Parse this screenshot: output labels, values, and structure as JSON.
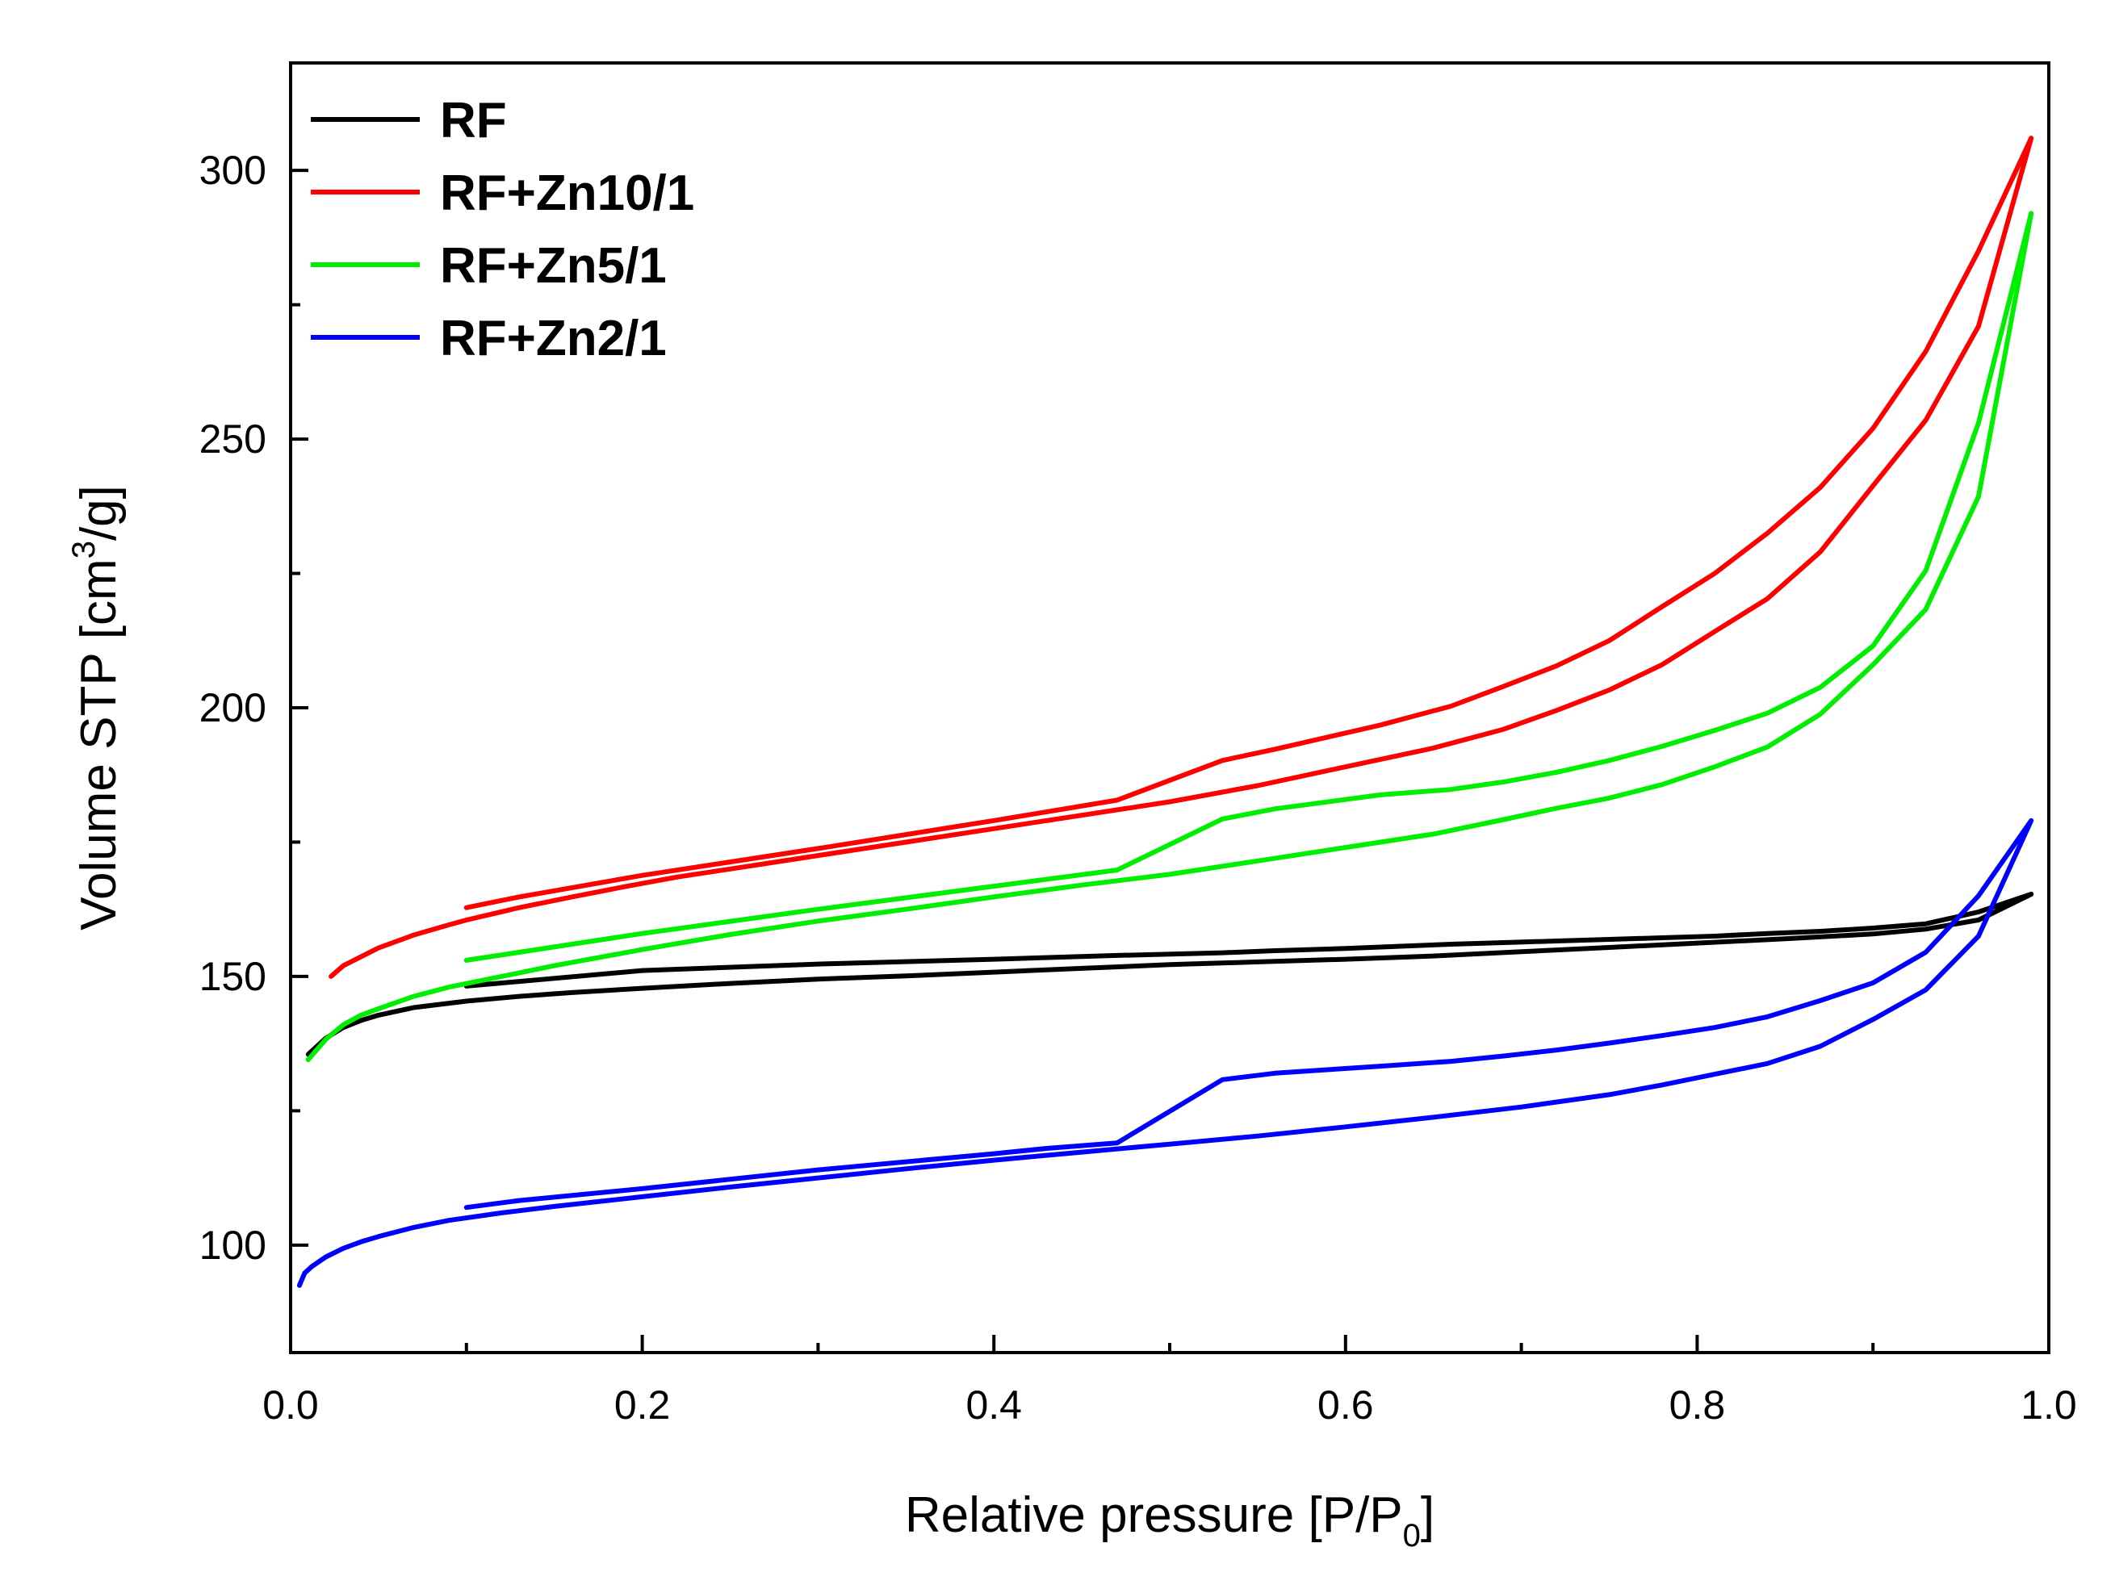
{
  "chart_data": {
    "type": "line",
    "xlabel": {
      "main": "Relative pressure [P/P",
      "sub": "0",
      "end": "]"
    },
    "ylabel": {
      "main": "Volume STP [cm",
      "sup": "3",
      "end": "/g]"
    },
    "xlim": [
      0.0,
      1.0
    ],
    "ylim": [
      80,
      320
    ],
    "x_major_ticks": [
      0.0,
      0.2,
      0.4,
      0.6,
      0.8,
      1.0
    ],
    "x_tick_labels": [
      "0.0",
      "0.2",
      "0.4",
      "0.6",
      "0.8",
      "1.0"
    ],
    "x_minor_ticks": [
      0.1,
      0.3,
      0.5,
      0.7,
      0.9
    ],
    "y_major_ticks": [
      100,
      150,
      200,
      250,
      300
    ],
    "y_tick_labels": [
      "100",
      "150",
      "200",
      "250",
      "300"
    ],
    "y_minor_ticks": [
      125,
      175,
      225,
      275
    ],
    "legend_position": "top-left",
    "series": [
      {
        "name": "RF",
        "color": "#000000",
        "x": [
          0.01,
          0.02,
          0.03,
          0.04,
          0.05,
          0.07,
          0.1,
          0.13,
          0.16,
          0.2,
          0.25,
          0.3,
          0.35,
          0.4,
          0.45,
          0.5,
          0.55,
          0.6,
          0.65,
          0.7,
          0.75,
          0.8,
          0.85,
          0.9,
          0.93,
          0.96,
          0.99,
          0.96,
          0.93,
          0.9,
          0.87,
          0.84,
          0.81,
          0.78,
          0.75,
          0.72,
          0.69,
          0.66,
          0.63,
          0.6,
          0.56,
          0.53,
          0.47,
          0.4,
          0.3,
          0.2,
          0.1
        ],
        "y": [
          135.5,
          138.5,
          140.5,
          141.8,
          142.8,
          144.2,
          145.4,
          146.3,
          147.0,
          147.8,
          148.7,
          149.5,
          150.1,
          150.8,
          151.5,
          152.2,
          152.7,
          153.2,
          153.8,
          154.6,
          155.4,
          156.2,
          157.0,
          157.9,
          158.8,
          160.5,
          165.3,
          162.0,
          159.8,
          159.0,
          158.4,
          158.0,
          157.5,
          157.2,
          156.9,
          156.6,
          156.3,
          156.0,
          155.6,
          155.2,
          154.8,
          154.4,
          153.9,
          153.2,
          152.3,
          151.1,
          148.2
        ]
      },
      {
        "name": "RF+Zn10/1",
        "color": "#ff0000",
        "x": [
          0.023,
          0.03,
          0.05,
          0.07,
          0.09,
          0.1,
          0.13,
          0.16,
          0.19,
          0.22,
          0.25,
          0.3,
          0.35,
          0.4,
          0.45,
          0.5,
          0.55,
          0.6,
          0.65,
          0.69,
          0.72,
          0.75,
          0.78,
          0.81,
          0.84,
          0.87,
          0.9,
          0.93,
          0.96,
          0.99,
          0.96,
          0.93,
          0.9,
          0.87,
          0.84,
          0.81,
          0.78,
          0.75,
          0.72,
          0.69,
          0.66,
          0.62,
          0.56,
          0.53,
          0.47,
          0.4,
          0.3,
          0.2,
          0.13,
          0.1
        ],
        "y": [
          150.0,
          152.0,
          155.3,
          157.7,
          159.6,
          160.5,
          162.8,
          164.8,
          166.7,
          168.5,
          170.0,
          172.5,
          175.0,
          177.5,
          180.0,
          182.5,
          185.5,
          189.0,
          192.5,
          196.0,
          199.5,
          203.3,
          208.0,
          214.2,
          220.3,
          229.0,
          241.3,
          253.5,
          271.0,
          306.0,
          285.0,
          266.3,
          252.0,
          241.0,
          232.5,
          225.0,
          218.8,
          212.5,
          207.8,
          204.0,
          200.3,
          196.8,
          192.3,
          190.2,
          182.8,
          179.0,
          173.8,
          168.8,
          164.8,
          162.8
        ]
      },
      {
        "name": "RF+Zn5/1",
        "color": "#00ee00",
        "x": [
          0.01,
          0.02,
          0.03,
          0.04,
          0.05,
          0.07,
          0.09,
          0.12,
          0.15,
          0.2,
          0.25,
          0.3,
          0.35,
          0.4,
          0.45,
          0.5,
          0.55,
          0.6,
          0.65,
          0.69,
          0.72,
          0.75,
          0.78,
          0.81,
          0.84,
          0.87,
          0.9,
          0.93,
          0.96,
          0.99,
          0.96,
          0.93,
          0.9,
          0.87,
          0.84,
          0.81,
          0.78,
          0.75,
          0.72,
          0.69,
          0.66,
          0.62,
          0.56,
          0.53,
          0.47,
          0.4,
          0.3,
          0.2,
          0.1
        ],
        "y": [
          134.5,
          138.3,
          141.0,
          142.8,
          144.0,
          146.3,
          148.0,
          150.0,
          152.0,
          155.0,
          157.8,
          160.3,
          162.5,
          164.8,
          167.0,
          169.0,
          171.5,
          174.0,
          176.5,
          179.2,
          181.3,
          183.2,
          185.7,
          189.0,
          192.7,
          198.8,
          208.0,
          218.3,
          239.3,
          292.0,
          253.0,
          225.5,
          211.5,
          203.8,
          199.0,
          195.8,
          192.8,
          190.2,
          188.0,
          186.2,
          184.8,
          183.8,
          181.2,
          179.3,
          169.8,
          166.8,
          162.5,
          158.0,
          153.0
        ]
      },
      {
        "name": "RF+Zn2/1",
        "color": "#0000ff",
        "x": [
          0.005,
          0.008,
          0.012,
          0.02,
          0.03,
          0.04,
          0.05,
          0.07,
          0.09,
          0.12,
          0.15,
          0.2,
          0.25,
          0.3,
          0.35,
          0.4,
          0.45,
          0.5,
          0.55,
          0.6,
          0.65,
          0.7,
          0.75,
          0.78,
          0.81,
          0.84,
          0.87,
          0.9,
          0.93,
          0.96,
          0.99,
          0.96,
          0.93,
          0.9,
          0.87,
          0.84,
          0.81,
          0.78,
          0.75,
          0.72,
          0.69,
          0.66,
          0.62,
          0.56,
          0.53,
          0.47,
          0.43,
          0.4,
          0.3,
          0.2,
          0.13,
          0.1
        ],
        "y": [
          92.5,
          94.8,
          96.0,
          97.8,
          99.4,
          100.6,
          101.6,
          103.3,
          104.6,
          106.0,
          107.2,
          109.0,
          110.8,
          112.5,
          114.2,
          115.8,
          117.3,
          118.8,
          120.3,
          122.0,
          123.8,
          125.7,
          128.0,
          129.8,
          131.8,
          133.8,
          137.0,
          142.0,
          147.5,
          157.5,
          179.0,
          165.0,
          154.5,
          148.8,
          145.5,
          142.5,
          140.5,
          139.0,
          137.6,
          136.3,
          135.2,
          134.2,
          133.3,
          132.0,
          130.8,
          119.0,
          118.0,
          117.0,
          114.0,
          110.5,
          108.3,
          107.0
        ]
      }
    ]
  }
}
